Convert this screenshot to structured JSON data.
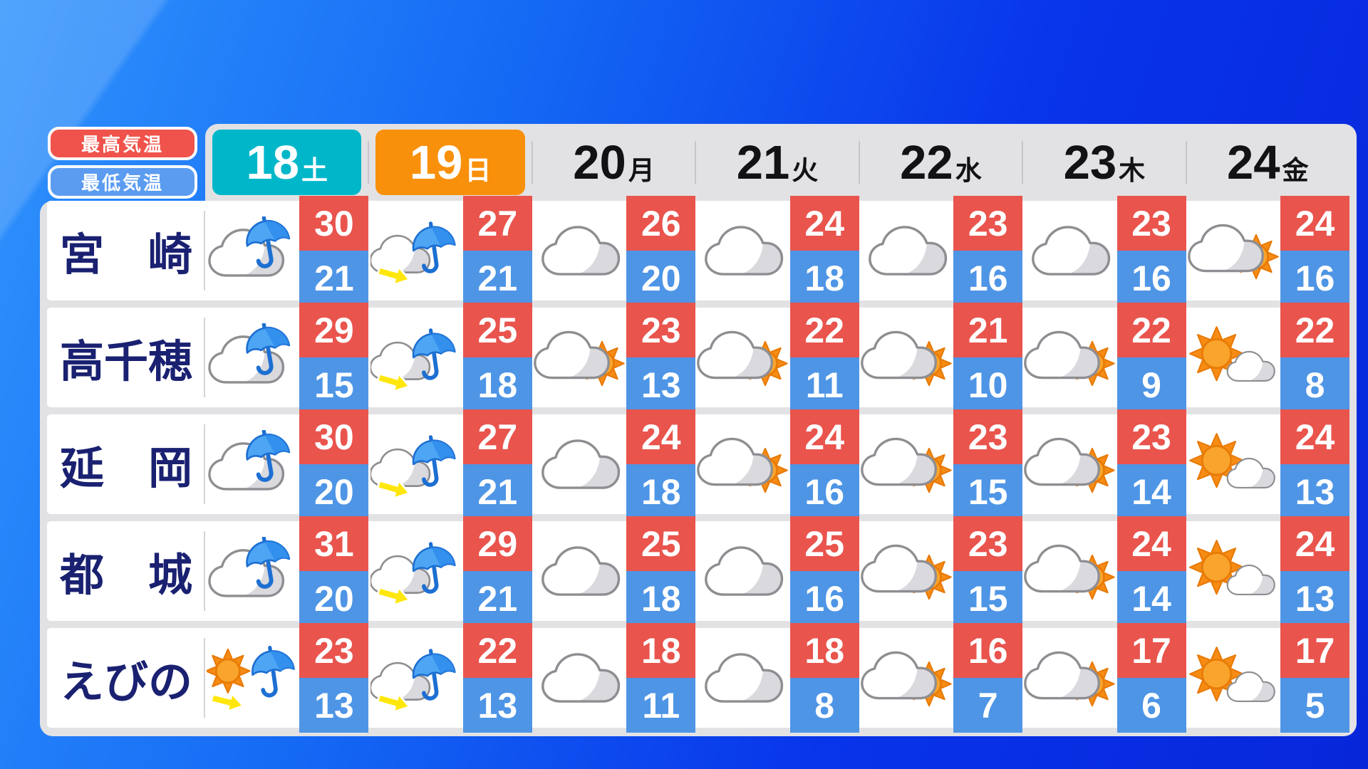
{
  "legend": {
    "high_label": "最高気温",
    "low_label": "最低気温"
  },
  "dates": [
    {
      "day": "18",
      "weekday": "土",
      "chip_color": "#00b7c9"
    },
    {
      "day": "19",
      "weekday": "日",
      "chip_color": "#f8900b"
    },
    {
      "day": "20",
      "weekday": "月"
    },
    {
      "day": "21",
      "weekday": "火"
    },
    {
      "day": "22",
      "weekday": "水"
    },
    {
      "day": "23",
      "weekday": "木"
    },
    {
      "day": "24",
      "weekday": "金"
    }
  ],
  "colors": {
    "high_bg": "#e9544d",
    "low_bg": "#4e95e6",
    "saturday_chip": "#00b7c9",
    "sunday_chip": "#f8900b",
    "legend_high": "#f0534b",
    "legend_low": "#5b9cf0",
    "city_text": "#1a2171",
    "panel_gray": "#e2e2e4"
  },
  "chart_data": {
    "type": "table",
    "columns": [
      "18土",
      "19日",
      "20月",
      "21火",
      "22水",
      "23木",
      "24金"
    ],
    "legend": [
      "最高気温",
      "最低気温"
    ],
    "rows": [
      {
        "city": "宮　崎",
        "days": [
          {
            "icon": "rain",
            "high": 30,
            "low": 21
          },
          {
            "icon": "cloud-rain",
            "high": 27,
            "low": 21
          },
          {
            "icon": "cloudy",
            "high": 26,
            "low": 20
          },
          {
            "icon": "cloudy",
            "high": 24,
            "low": 18
          },
          {
            "icon": "cloudy",
            "high": 23,
            "low": 16
          },
          {
            "icon": "cloudy",
            "high": 23,
            "low": 16
          },
          {
            "icon": "cloud-sun",
            "high": 24,
            "low": 16
          }
        ]
      },
      {
        "city": "高千穂",
        "days": [
          {
            "icon": "rain",
            "high": 29,
            "low": 15
          },
          {
            "icon": "cloud-rain",
            "high": 25,
            "low": 18
          },
          {
            "icon": "cloud-sun",
            "high": 23,
            "low": 13
          },
          {
            "icon": "cloud-sun",
            "high": 22,
            "low": 11
          },
          {
            "icon": "cloud-sun",
            "high": 21,
            "low": 10
          },
          {
            "icon": "cloud-sun",
            "high": 22,
            "low": 9
          },
          {
            "icon": "sun-cloud",
            "high": 22,
            "low": 8
          }
        ]
      },
      {
        "city": "延　岡",
        "days": [
          {
            "icon": "rain",
            "high": 30,
            "low": 20
          },
          {
            "icon": "cloud-rain",
            "high": 27,
            "low": 21
          },
          {
            "icon": "cloudy",
            "high": 24,
            "low": 18
          },
          {
            "icon": "cloud-sun",
            "high": 24,
            "low": 16
          },
          {
            "icon": "cloud-sun",
            "high": 23,
            "low": 15
          },
          {
            "icon": "cloud-sun",
            "high": 23,
            "low": 14
          },
          {
            "icon": "sun-cloud",
            "high": 24,
            "low": 13
          }
        ]
      },
      {
        "city": "都　城",
        "days": [
          {
            "icon": "rain",
            "high": 31,
            "low": 20
          },
          {
            "icon": "cloud-rain",
            "high": 29,
            "low": 21
          },
          {
            "icon": "cloudy",
            "high": 25,
            "low": 18
          },
          {
            "icon": "cloudy",
            "high": 25,
            "low": 16
          },
          {
            "icon": "cloud-sun",
            "high": 23,
            "low": 15
          },
          {
            "icon": "cloud-sun",
            "high": 24,
            "low": 14
          },
          {
            "icon": "sun-cloud",
            "high": 24,
            "low": 13
          }
        ]
      },
      {
        "city": "えびの",
        "days": [
          {
            "icon": "sun-rain",
            "high": 23,
            "low": 13
          },
          {
            "icon": "cloud-rain",
            "high": 22,
            "low": 13
          },
          {
            "icon": "cloudy",
            "high": 18,
            "low": 11
          },
          {
            "icon": "cloudy",
            "high": 18,
            "low": 8
          },
          {
            "icon": "cloud-sun",
            "high": 16,
            "low": 7
          },
          {
            "icon": "cloud-sun",
            "high": 17,
            "low": 6
          },
          {
            "icon": "sun-cloud",
            "high": 17,
            "low": 5
          }
        ]
      }
    ]
  }
}
